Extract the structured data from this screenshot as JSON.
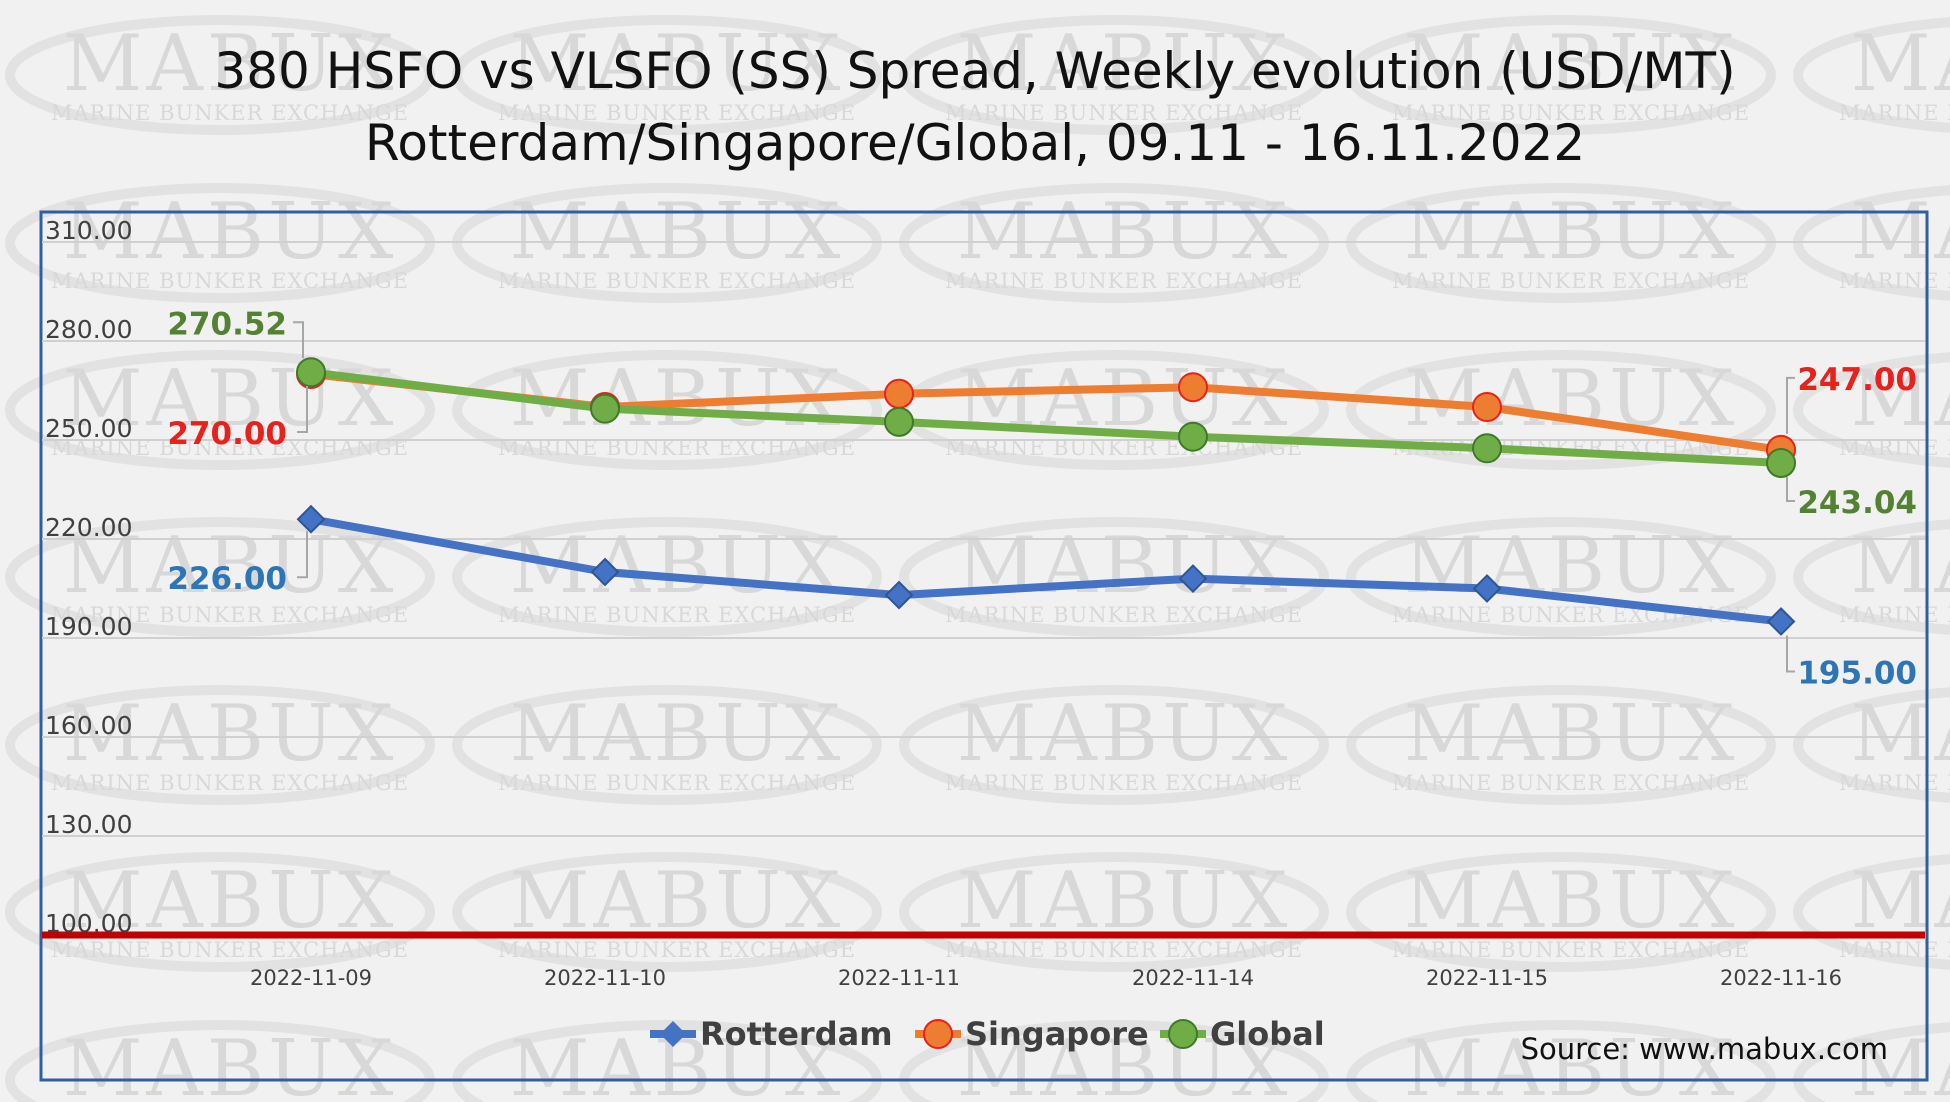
{
  "watermark": {
    "brand": "MABUX",
    "tagline": "MARINE BUNKER EXCHANGE"
  },
  "source": "Source: www.mabux.com",
  "chart_data": {
    "type": "line",
    "title": "380 HSFO vs VLSFO (SS) Spread, Weekly evolution (USD/MT)",
    "subtitle": "Rotterdam/Singapore/Global, 09.11 - 16.11.2022",
    "xlabel": "",
    "ylabel": "",
    "categories": [
      "2022-11-09",
      "2022-11-10",
      "2022-11-11",
      "2022-11-14",
      "2022-11-15",
      "2022-11-16"
    ],
    "ylim": [
      100,
      310
    ],
    "yticks": [
      "310.00",
      "280.00",
      "250.00",
      "220.00",
      "190.00",
      "160.00",
      "130.00",
      "100.00"
    ],
    "ytick_values": [
      310,
      280,
      250,
      220,
      190,
      160,
      130,
      100
    ],
    "grid": true,
    "legend_position": "bottom",
    "reference_line": {
      "value": 100,
      "color": "#c00000"
    },
    "series": [
      {
        "name": "Rotterdam",
        "color": "#4472c4",
        "marker": "diamond",
        "values": [
          226.0,
          210.0,
          203.0,
          208.0,
          205.0,
          195.0
        ],
        "labels": [
          {
            "index": 0,
            "text": "226.00",
            "color": "#2e75b6",
            "side": "below-left"
          },
          {
            "index": 5,
            "text": "195.00",
            "color": "#2e75b6",
            "side": "below-right"
          }
        ]
      },
      {
        "name": "Singapore",
        "color": "#ed7d31",
        "marker": "circle",
        "values": [
          270.0,
          260.0,
          264.0,
          266.0,
          260.0,
          247.0
        ],
        "labels": [
          {
            "index": 0,
            "text": "270.00",
            "color": "#e8211c",
            "side": "below-left"
          },
          {
            "index": 5,
            "text": "247.00",
            "color": "#e8211c",
            "side": "above-right"
          }
        ]
      },
      {
        "name": "Global",
        "color": "#70ad47",
        "marker": "circle",
        "values": [
          270.52,
          259.5,
          255.5,
          251.0,
          247.5,
          243.04
        ],
        "labels": [
          {
            "index": 0,
            "text": "270.52",
            "color": "#548235",
            "side": "above-left"
          },
          {
            "index": 5,
            "text": "243.04",
            "color": "#548235",
            "side": "below-right"
          }
        ]
      }
    ]
  }
}
